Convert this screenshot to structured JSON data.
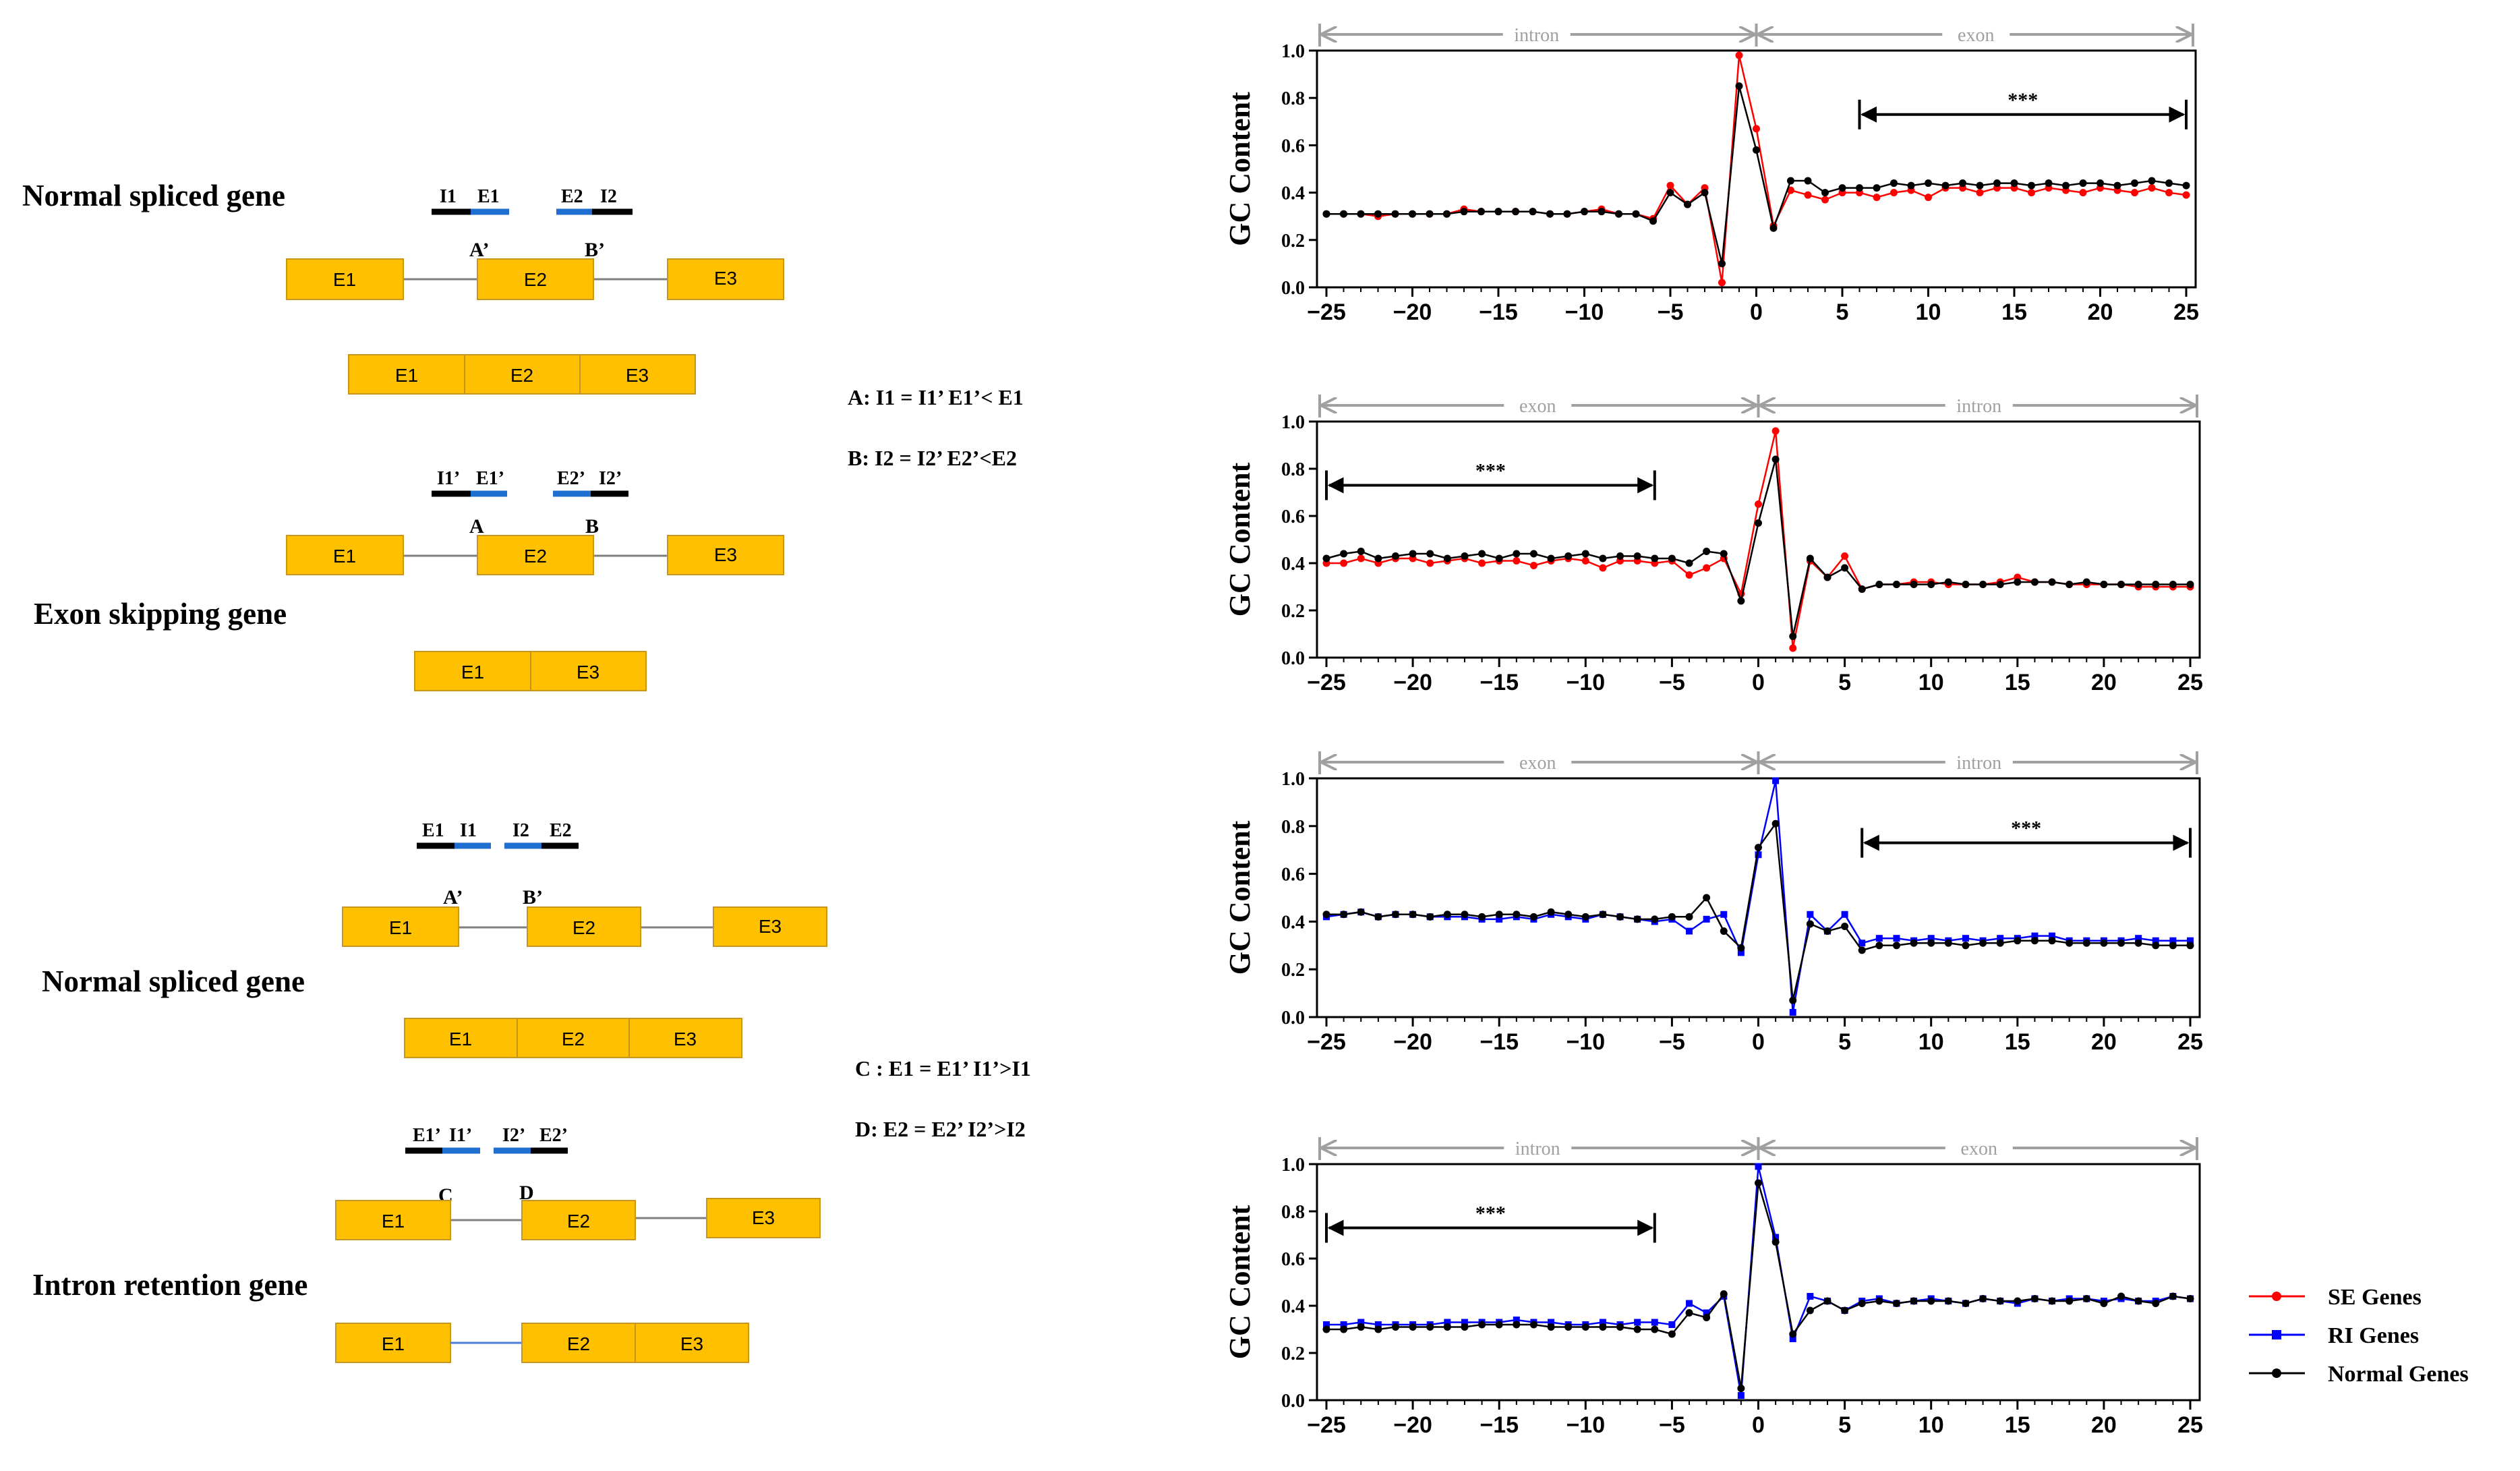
{
  "colors": {
    "exon_fill": "#FFC000",
    "exon_stroke": "#C8961E",
    "intron_line": "#7F7F7F",
    "retained_intron": "#4A7FD8",
    "probe_black": "#000000",
    "probe_blue": "#1F6FD1",
    "se_series": "#FF0000",
    "ri_series": "#0000FF",
    "normal_series": "#000000",
    "region_arrow": "#A0A0A0"
  },
  "diagram": {
    "normal_spliced_1": {
      "title": "Normal spliced gene",
      "probe_labels": [
        "I1",
        "E1",
        "E2",
        "I2"
      ],
      "point_labels": [
        "A’",
        "B’"
      ],
      "exons": [
        "E1",
        "E2",
        "E3"
      ],
      "spliced_exons": [
        "E1",
        "E2",
        "E3"
      ]
    },
    "exon_skipping": {
      "title": "Exon skipping gene",
      "probe_labels": [
        "I1’",
        "E1’",
        "E2’",
        "I2’"
      ],
      "point_labels": [
        "A",
        "B"
      ],
      "exons": [
        "E1",
        "E2",
        "E3"
      ],
      "spliced_exons": [
        "E1",
        "E3"
      ]
    },
    "rule_a": "A: I1 = I1’ E1’< E1",
    "rule_b": "B: I2 = I2’  E2’<E2",
    "normal_spliced_2": {
      "title": "Normal spliced gene",
      "probe_labels": [
        "E1",
        "I1",
        "I2",
        "E2"
      ],
      "point_labels": [
        "A’",
        "B’"
      ],
      "exons": [
        "E1",
        "E2",
        "E3"
      ],
      "spliced_exons": [
        "E1",
        "E2",
        "E3"
      ]
    },
    "rule_c": "C : E1 = E1’ I1’>I1",
    "rule_d": "D: E2 = E2’  I2’>I2",
    "intron_retention": {
      "title": "Intron retention gene",
      "probe_labels": [
        "E1’",
        "I1’",
        "I2’",
        "E2’"
      ],
      "point_labels": [
        "C",
        "D"
      ],
      "exons": [
        "E1",
        "E2",
        "E3"
      ],
      "spliced_exons": [
        "E1",
        "E2",
        "E3"
      ]
    }
  },
  "legend": [
    {
      "label": "SE Genes",
      "color": "#FF0000",
      "marker": "circle"
    },
    {
      "label": "RI Genes",
      "color": "#0000FF",
      "marker": "square"
    },
    {
      "label": "Normal Genes",
      "color": "#000000",
      "marker": "circle"
    }
  ],
  "chart_data": [
    {
      "type": "line",
      "title": "",
      "ylabel": "GC Content",
      "xlabel": "",
      "xlim": [
        -25,
        25
      ],
      "ylim": [
        0,
        1.0
      ],
      "xticks": [
        -25,
        -20,
        -15,
        -10,
        -5,
        0,
        5,
        10,
        15,
        20,
        25
      ],
      "yticks": [
        0.0,
        0.2,
        0.4,
        0.6,
        0.8,
        1.0
      ],
      "region_left": "intron",
      "region_right": "exon",
      "significance": {
        "label": "***",
        "from": 6,
        "to": 25
      },
      "x": [
        -25,
        -24,
        -23,
        -22,
        -21,
        -20,
        -19,
        -18,
        -17,
        -16,
        -15,
        -14,
        -13,
        -12,
        -11,
        -10,
        -9,
        -8,
        -7,
        -6,
        -5,
        -4,
        -3,
        -2,
        -1,
        0,
        1,
        2,
        3,
        4,
        5,
        6,
        7,
        8,
        9,
        10,
        11,
        12,
        13,
        14,
        15,
        16,
        17,
        18,
        19,
        20,
        21,
        22,
        23,
        24,
        25
      ],
      "series": [
        {
          "name": "SE Genes",
          "color": "#FF0000",
          "marker": "circle",
          "values": [
            0.31,
            0.31,
            0.31,
            0.3,
            0.31,
            0.31,
            0.31,
            0.31,
            0.33,
            0.32,
            0.32,
            0.32,
            0.32,
            0.31,
            0.31,
            0.32,
            0.33,
            0.31,
            0.31,
            0.29,
            0.43,
            0.35,
            0.42,
            0.02,
            0.98,
            0.67,
            0.26,
            0.41,
            0.39,
            0.37,
            0.4,
            0.4,
            0.38,
            0.4,
            0.41,
            0.38,
            0.42,
            0.42,
            0.4,
            0.42,
            0.42,
            0.4,
            0.42,
            0.41,
            0.4,
            0.42,
            0.41,
            0.4,
            0.42,
            0.4,
            0.39
          ]
        },
        {
          "name": "Normal Genes",
          "color": "#000000",
          "marker": "circle",
          "values": [
            0.31,
            0.31,
            0.31,
            0.31,
            0.31,
            0.31,
            0.31,
            0.31,
            0.32,
            0.32,
            0.32,
            0.32,
            0.32,
            0.31,
            0.31,
            0.32,
            0.32,
            0.31,
            0.31,
            0.28,
            0.4,
            0.35,
            0.4,
            0.1,
            0.85,
            0.58,
            0.25,
            0.45,
            0.45,
            0.4,
            0.42,
            0.42,
            0.42,
            0.44,
            0.43,
            0.44,
            0.43,
            0.44,
            0.43,
            0.44,
            0.44,
            0.43,
            0.44,
            0.43,
            0.44,
            0.44,
            0.43,
            0.44,
            0.45,
            0.44,
            0.43
          ]
        }
      ]
    },
    {
      "type": "line",
      "title": "",
      "ylabel": "GC Content",
      "xlabel": "",
      "xlim": [
        -25,
        25
      ],
      "ylim": [
        0,
        1.0
      ],
      "xticks": [
        -25,
        -20,
        -15,
        -10,
        -5,
        0,
        5,
        10,
        15,
        20,
        25
      ],
      "yticks": [
        0.0,
        0.2,
        0.4,
        0.6,
        0.8,
        1.0
      ],
      "region_left": "exon",
      "region_right": "intron",
      "significance": {
        "label": "***",
        "from": -25,
        "to": -6
      },
      "x": [
        -25,
        -24,
        -23,
        -22,
        -21,
        -20,
        -19,
        -18,
        -17,
        -16,
        -15,
        -14,
        -13,
        -12,
        -11,
        -10,
        -9,
        -8,
        -7,
        -6,
        -5,
        -4,
        -3,
        -2,
        -1,
        0,
        1,
        2,
        3,
        4,
        5,
        6,
        7,
        8,
        9,
        10,
        11,
        12,
        13,
        14,
        15,
        16,
        17,
        18,
        19,
        20,
        21,
        22,
        23,
        24,
        25
      ],
      "series": [
        {
          "name": "SE Genes",
          "color": "#FF0000",
          "marker": "circle",
          "values": [
            0.4,
            0.4,
            0.42,
            0.4,
            0.42,
            0.42,
            0.4,
            0.41,
            0.42,
            0.4,
            0.41,
            0.41,
            0.39,
            0.41,
            0.42,
            0.41,
            0.38,
            0.41,
            0.41,
            0.4,
            0.41,
            0.35,
            0.38,
            0.42,
            0.27,
            0.65,
            0.96,
            0.04,
            0.41,
            0.34,
            0.43,
            0.29,
            0.31,
            0.31,
            0.32,
            0.32,
            0.31,
            0.31,
            0.31,
            0.32,
            0.34,
            0.32,
            0.32,
            0.31,
            0.31,
            0.31,
            0.31,
            0.3,
            0.3,
            0.3,
            0.3
          ]
        },
        {
          "name": "Normal Genes",
          "color": "#000000",
          "marker": "circle",
          "values": [
            0.42,
            0.44,
            0.45,
            0.42,
            0.43,
            0.44,
            0.44,
            0.42,
            0.43,
            0.44,
            0.42,
            0.44,
            0.44,
            0.42,
            0.43,
            0.44,
            0.42,
            0.43,
            0.43,
            0.42,
            0.42,
            0.4,
            0.45,
            0.44,
            0.24,
            0.57,
            0.84,
            0.09,
            0.42,
            0.34,
            0.38,
            0.29,
            0.31,
            0.31,
            0.31,
            0.31,
            0.32,
            0.31,
            0.31,
            0.31,
            0.32,
            0.32,
            0.32,
            0.31,
            0.32,
            0.31,
            0.31,
            0.31,
            0.31,
            0.31,
            0.31
          ]
        }
      ]
    },
    {
      "type": "line",
      "title": "",
      "ylabel": "GC Content",
      "xlabel": "",
      "xlim": [
        -25,
        25
      ],
      "ylim": [
        0,
        1.0
      ],
      "xticks": [
        -25,
        -20,
        -15,
        -10,
        -5,
        0,
        5,
        10,
        15,
        20,
        25
      ],
      "yticks": [
        0.0,
        0.2,
        0.4,
        0.6,
        0.8,
        1.0
      ],
      "region_left": "exon",
      "region_right": "intron",
      "significance": {
        "label": "***",
        "from": 6,
        "to": 25
      },
      "x": [
        -25,
        -24,
        -23,
        -22,
        -21,
        -20,
        -19,
        -18,
        -17,
        -16,
        -15,
        -14,
        -13,
        -12,
        -11,
        -10,
        -9,
        -8,
        -7,
        -6,
        -5,
        -4,
        -3,
        -2,
        -1,
        0,
        1,
        2,
        3,
        4,
        5,
        6,
        7,
        8,
        9,
        10,
        11,
        12,
        13,
        14,
        15,
        16,
        17,
        18,
        19,
        20,
        21,
        22,
        23,
        24,
        25
      ],
      "series": [
        {
          "name": "RI Genes",
          "color": "#0000FF",
          "marker": "square",
          "values": [
            0.42,
            0.43,
            0.44,
            0.42,
            0.43,
            0.43,
            0.42,
            0.42,
            0.42,
            0.41,
            0.41,
            0.42,
            0.41,
            0.43,
            0.42,
            0.41,
            0.43,
            0.42,
            0.41,
            0.4,
            0.41,
            0.36,
            0.41,
            0.43,
            0.27,
            0.68,
            0.99,
            0.02,
            0.43,
            0.36,
            0.43,
            0.31,
            0.33,
            0.33,
            0.32,
            0.33,
            0.32,
            0.33,
            0.32,
            0.33,
            0.33,
            0.34,
            0.34,
            0.32,
            0.32,
            0.32,
            0.32,
            0.33,
            0.32,
            0.32,
            0.32
          ]
        },
        {
          "name": "Normal Genes",
          "color": "#000000",
          "marker": "circle",
          "values": [
            0.43,
            0.43,
            0.44,
            0.42,
            0.43,
            0.43,
            0.42,
            0.43,
            0.43,
            0.42,
            0.43,
            0.43,
            0.42,
            0.44,
            0.43,
            0.42,
            0.43,
            0.42,
            0.41,
            0.41,
            0.42,
            0.42,
            0.5,
            0.36,
            0.29,
            0.71,
            0.81,
            0.07,
            0.39,
            0.36,
            0.38,
            0.28,
            0.3,
            0.3,
            0.31,
            0.31,
            0.31,
            0.3,
            0.31,
            0.31,
            0.32,
            0.32,
            0.32,
            0.31,
            0.31,
            0.31,
            0.31,
            0.31,
            0.3,
            0.3,
            0.3
          ]
        }
      ]
    },
    {
      "type": "line",
      "title": "",
      "ylabel": "GC Content",
      "xlabel": "",
      "xlim": [
        -25,
        25
      ],
      "ylim": [
        0,
        1.0
      ],
      "xticks": [
        -25,
        -20,
        -15,
        -10,
        -5,
        0,
        5,
        10,
        15,
        20,
        25
      ],
      "yticks": [
        0.0,
        0.2,
        0.4,
        0.6,
        0.8,
        1.0
      ],
      "region_left": "intron",
      "region_right": "exon",
      "significance": {
        "label": "***",
        "from": -25,
        "to": -6
      },
      "x": [
        -25,
        -24,
        -23,
        -22,
        -21,
        -20,
        -19,
        -18,
        -17,
        -16,
        -15,
        -14,
        -13,
        -12,
        -11,
        -10,
        -9,
        -8,
        -7,
        -6,
        -5,
        -4,
        -3,
        -2,
        -1,
        0,
        1,
        2,
        3,
        4,
        5,
        6,
        7,
        8,
        9,
        10,
        11,
        12,
        13,
        14,
        15,
        16,
        17,
        18,
        19,
        20,
        21,
        22,
        23,
        24,
        25
      ],
      "series": [
        {
          "name": "RI Genes",
          "color": "#0000FF",
          "marker": "square",
          "values": [
            0.32,
            0.32,
            0.33,
            0.32,
            0.32,
            0.32,
            0.32,
            0.33,
            0.33,
            0.33,
            0.33,
            0.34,
            0.33,
            0.33,
            0.32,
            0.32,
            0.33,
            0.32,
            0.33,
            0.33,
            0.32,
            0.41,
            0.37,
            0.44,
            0.02,
            0.99,
            0.69,
            0.26,
            0.44,
            0.42,
            0.38,
            0.42,
            0.43,
            0.41,
            0.42,
            0.43,
            0.42,
            0.41,
            0.43,
            0.42,
            0.41,
            0.43,
            0.42,
            0.43,
            0.43,
            0.42,
            0.43,
            0.42,
            0.42,
            0.44,
            0.43
          ]
        },
        {
          "name": "Normal Genes",
          "color": "#000000",
          "marker": "circle",
          "values": [
            0.3,
            0.3,
            0.31,
            0.3,
            0.31,
            0.31,
            0.31,
            0.31,
            0.31,
            0.32,
            0.32,
            0.32,
            0.32,
            0.31,
            0.31,
            0.31,
            0.31,
            0.31,
            0.3,
            0.3,
            0.28,
            0.37,
            0.35,
            0.45,
            0.05,
            0.92,
            0.67,
            0.28,
            0.38,
            0.42,
            0.38,
            0.41,
            0.42,
            0.41,
            0.42,
            0.42,
            0.42,
            0.41,
            0.43,
            0.42,
            0.42,
            0.43,
            0.42,
            0.42,
            0.43,
            0.41,
            0.44,
            0.42,
            0.41,
            0.44,
            0.43
          ]
        }
      ]
    }
  ]
}
